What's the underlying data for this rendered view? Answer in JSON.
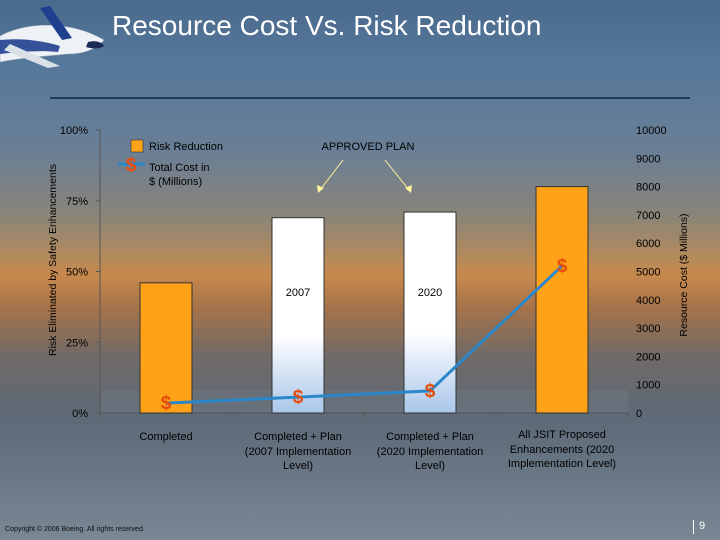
{
  "slide": {
    "title": "Resource Cost Vs. Risk Reduction",
    "copyright": "Copyright © 2006 Boeing. All rights reserved.",
    "page_number": "9"
  },
  "chart_data": {
    "type": "bar",
    "categories": [
      "Completed",
      "Completed + Plan (2007 Implementation Level)",
      "Completed + Plan (2020 Implementation Level)",
      "All JSIT Proposed Enhancements (2020 Implementation Level)"
    ],
    "ylabel": "Risk Eliminated by Safety Enhancements",
    "y2label": "Resource Cost ($ Millions)",
    "ylim": [
      0,
      100
    ],
    "y2lim": [
      0,
      10000
    ],
    "yticks": [
      "0%",
      "25%",
      "50%",
      "75%",
      "100%"
    ],
    "y2ticks": [
      "0",
      "1000",
      "2000",
      "3000",
      "4000",
      "5000",
      "6000",
      "7000",
      "8000",
      "9000",
      "10000"
    ],
    "series": [
      {
        "name": "Risk Reduction",
        "type": "bar",
        "axis": "left",
        "values": [
          46,
          69,
          71,
          80
        ],
        "colors": [
          "#ffa217",
          "#ffffff",
          "#ffffff",
          "#ffa217"
        ]
      },
      {
        "name": "Total Cost in $ (Millions)",
        "type": "line",
        "axis": "right",
        "values": [
          350,
          560,
          780,
          5200
        ],
        "color": "#2a87c9",
        "marker": "$"
      }
    ],
    "bar_labels": [
      "",
      "2007",
      "2020",
      ""
    ],
    "annotation": {
      "text": "APPROVED PLAN",
      "targets": [
        1,
        2
      ]
    },
    "legend_position": "top-left",
    "grid": false
  }
}
